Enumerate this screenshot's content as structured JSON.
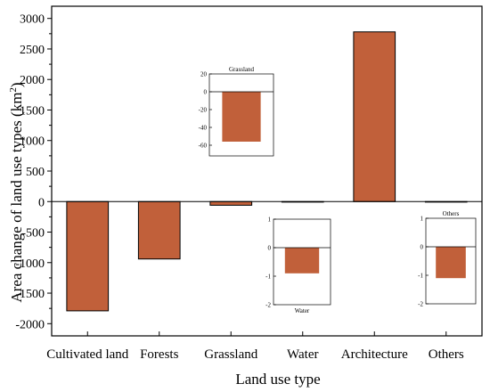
{
  "chart_data": [
    {
      "type": "bar",
      "role": "main",
      "categories": [
        "Cultivated land",
        "Forests",
        "Grassland",
        "Water",
        "Architecture",
        "Others"
      ],
      "values": [
        -1790,
        -940,
        -60,
        -1,
        2780,
        -1
      ],
      "xlabel": "Land use type",
      "ylabel": "Area change of land use types (km",
      "ylabel_sup": "2",
      "ylabel_close": ")",
      "ylim": [
        -2200,
        3200
      ],
      "yticks": [
        -2000,
        -1500,
        -1000,
        -500,
        0,
        500,
        1000,
        1500,
        2000,
        2500,
        3000
      ],
      "bar_color": "#c1603a",
      "grid": false
    },
    {
      "type": "bar",
      "role": "inset",
      "title": "Grassland",
      "values": [
        -56
      ],
      "ylim": [
        -72,
        20
      ],
      "yticks": [
        20,
        0,
        -20,
        -40,
        -60
      ],
      "bar_color": "#c1603a"
    },
    {
      "type": "bar",
      "role": "inset",
      "title": "Water",
      "title_position": "bottom",
      "values": [
        -0.9
      ],
      "ylim": [
        -2,
        1
      ],
      "yticks": [
        1,
        0,
        -1,
        -2
      ],
      "bar_color": "#c1603a"
    },
    {
      "type": "bar",
      "role": "inset",
      "title": "Others",
      "values": [
        -1.1
      ],
      "ylim": [
        -2,
        1
      ],
      "yticks": [
        1,
        0,
        -1,
        -2
      ],
      "bar_color": "#c1603a"
    }
  ]
}
